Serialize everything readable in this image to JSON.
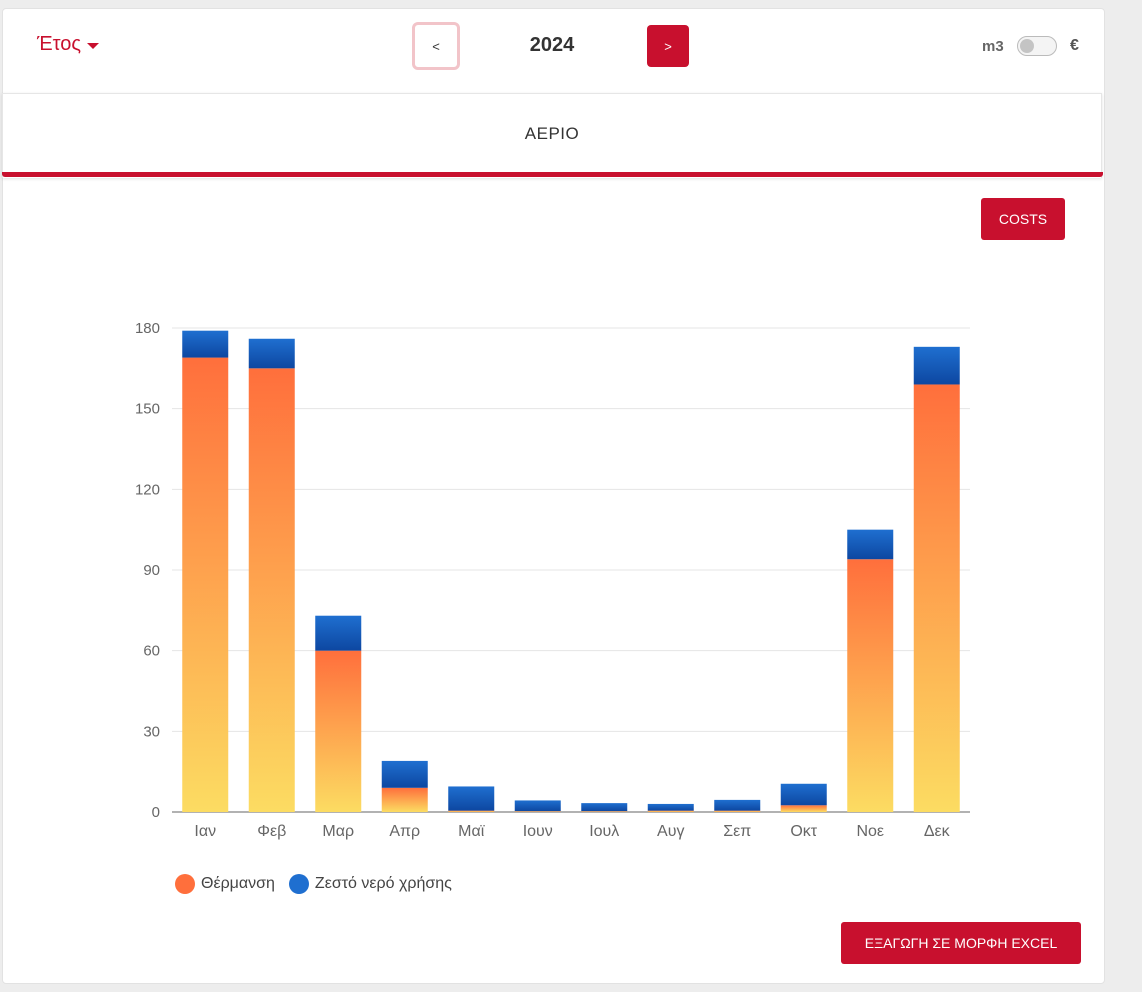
{
  "header": {
    "period_dropdown_label": "Έτος",
    "prev_label": "<",
    "year": "2024",
    "next_label": ">",
    "unit_left": "m3",
    "unit_right": "€",
    "unit_toggle_on": false
  },
  "tab": {
    "title": "ΑΕΡΙΟ"
  },
  "buttons": {
    "costs_label": "COSTS",
    "export_label": "ΕΞΑΓΩΓΗ ΣΕ ΜΟΡΦΗ EXCEL"
  },
  "colors": {
    "accent": "#c8102e",
    "heating_top": "#ff6f3c",
    "heating_bottom": "#fcdc62",
    "hot_water_top": "#1f6fd0",
    "hot_water_bottom": "#0d47a1"
  },
  "chart_data": {
    "type": "bar",
    "stacked": true,
    "categories": [
      "Ιαν",
      "Φεβ",
      "Μαρ",
      "Απρ",
      "Μαϊ",
      "Ιουν",
      "Ιουλ",
      "Αυγ",
      "Σεπ",
      "Οκτ",
      "Νοε",
      "Δεκ"
    ],
    "series": [
      {
        "name": "Θέρμανση",
        "values": [
          169,
          165,
          60,
          9,
          0.5,
          0.3,
          0.3,
          0.5,
          0.5,
          2.5,
          94,
          159
        ]
      },
      {
        "name": "Ζεστό νερό χρήσης",
        "values": [
          10,
          11,
          13,
          10,
          9,
          4,
          3,
          2.5,
          4,
          8,
          11,
          14
        ]
      }
    ],
    "ylim": [
      0,
      180
    ],
    "yticks": [
      0,
      30,
      60,
      90,
      120,
      150,
      180
    ],
    "grid": true,
    "legend": "bottom-left"
  }
}
